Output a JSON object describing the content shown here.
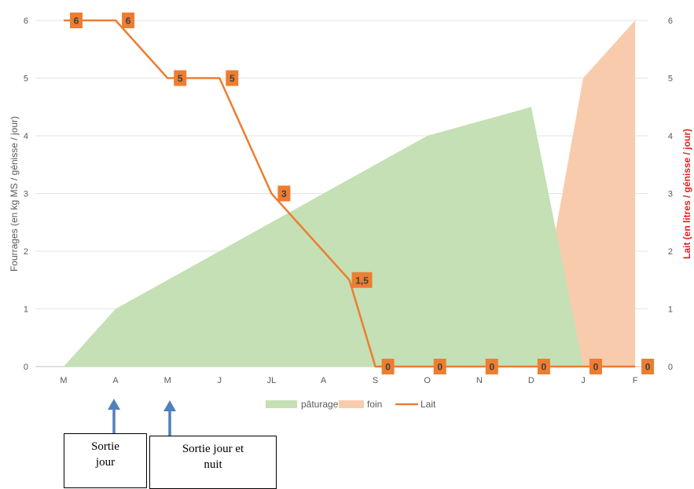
{
  "chart_data": {
    "type": "area",
    "categories": [
      "M",
      "A",
      "M",
      "J",
      "JL",
      "A",
      "S",
      "O",
      "N",
      "D",
      "J",
      "F"
    ],
    "y_left_label": "Fourrages (en kg MS / génisse / jour)",
    "y_right_label": "Lait (en litres / génisse / jour)",
    "ylim": [
      0,
      6
    ],
    "y_ticks": [
      "0",
      "1",
      "2",
      "3",
      "4",
      "5",
      "6"
    ],
    "grid": true,
    "legend_position": "bottom",
    "series": [
      {
        "name": "pâturage",
        "kind": "area",
        "color": "#c5e0b4",
        "values": [
          0,
          1,
          1.5,
          2,
          2.5,
          3,
          3.5,
          4,
          4.25,
          4.5,
          0,
          0
        ]
      },
      {
        "name": "foin",
        "kind": "area",
        "color": "#f8cbad",
        "values": [
          0,
          0,
          0,
          0,
          0,
          0,
          0,
          0,
          0,
          0,
          5,
          6
        ]
      },
      {
        "name": "Lait",
        "kind": "line",
        "color": "#ed7d31",
        "x": [
          0,
          1,
          2,
          3,
          4,
          5.5,
          6,
          7,
          8,
          9,
          10,
          11
        ],
        "values": [
          6,
          6,
          5,
          5,
          3,
          1.5,
          0,
          0,
          0,
          0,
          0,
          0
        ],
        "data_labels": [
          "6",
          "6",
          "5",
          "5",
          "3",
          "1,5",
          "0",
          "0",
          "0",
          "0",
          "0",
          "0"
        ]
      }
    ]
  },
  "annotations": [
    {
      "text_line1": "Sortie",
      "text_line2": "jour",
      "arrow_color": "#4f81bd"
    },
    {
      "text_line1": "Sortie jour et",
      "text_line2": "nuit",
      "arrow_color": "#4f81bd"
    }
  ]
}
